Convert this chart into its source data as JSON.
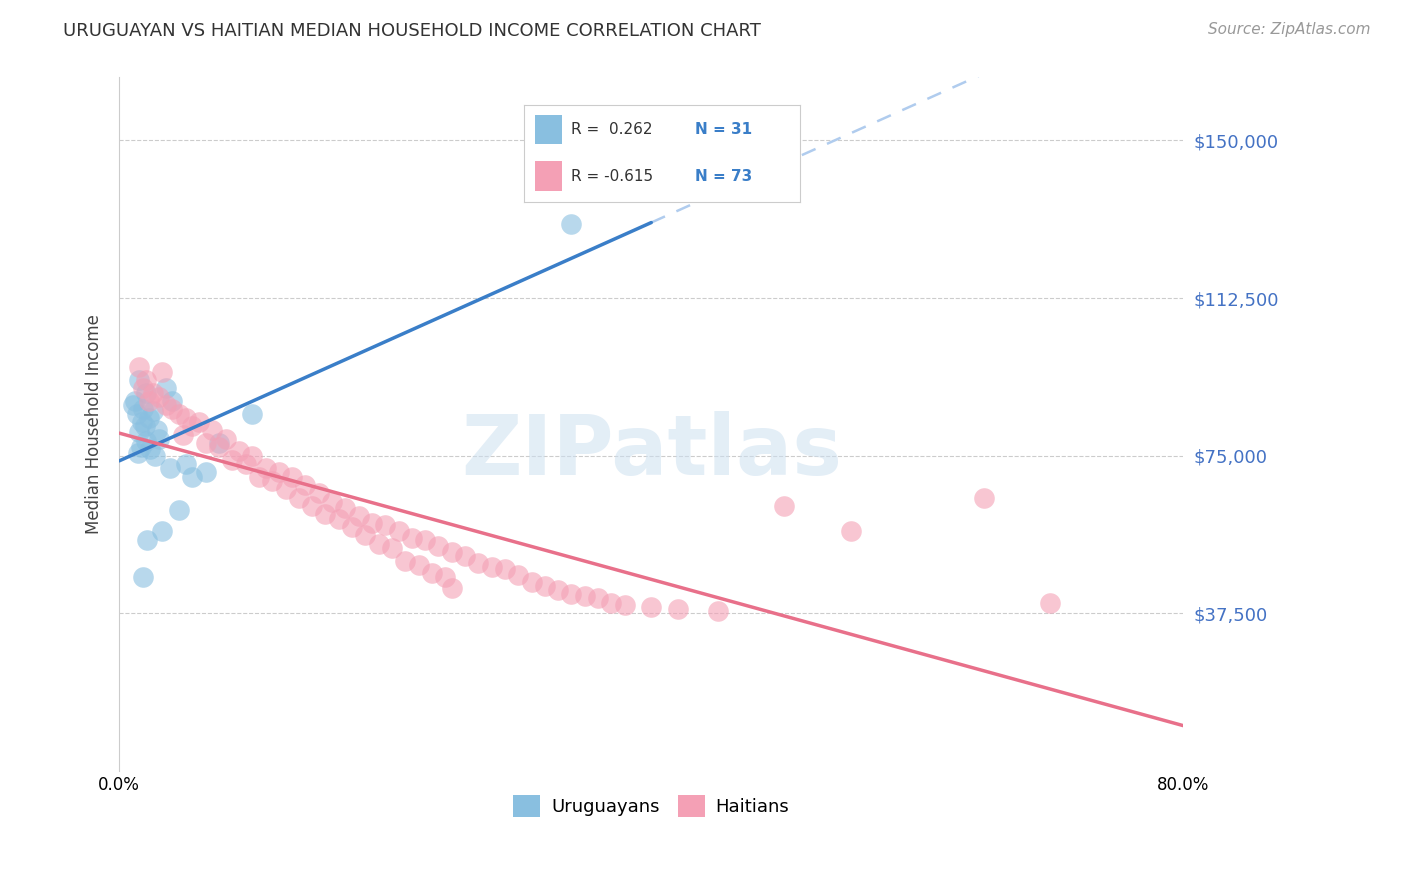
{
  "title": "URUGUAYAN VS HAITIAN MEDIAN HOUSEHOLD INCOME CORRELATION CHART",
  "source": "Source: ZipAtlas.com",
  "ylabel": "Median Household Income",
  "legend_labels": [
    "Uruguayans",
    "Haitians"
  ],
  "yticks": [
    0,
    37500,
    75000,
    112500,
    150000
  ],
  "ytick_labels": [
    "",
    "$37,500",
    "$75,000",
    "$112,500",
    "$150,000"
  ],
  "xlim": [
    0,
    80
  ],
  "ylim": [
    20000,
    165000
  ],
  "blue_color": "#89bfe0",
  "pink_color": "#f4a0b5",
  "blue_line_color": "#3a7ec8",
  "pink_line_color": "#e8708a",
  "dashed_line_color": "#b0ccee",
  "background_color": "#ffffff",
  "uruguayan_x": [
    1.5,
    2.0,
    1.2,
    1.0,
    1.8,
    2.5,
    1.3,
    2.2,
    1.7,
    1.9,
    2.8,
    1.5,
    3.0,
    2.0,
    1.6,
    2.3,
    1.4,
    2.7,
    3.5,
    4.0,
    5.0,
    3.8,
    6.5,
    10.0,
    7.5,
    4.5,
    3.2,
    2.1,
    1.8,
    5.5,
    34.0
  ],
  "uruguayan_y": [
    93000,
    90000,
    88000,
    87000,
    86000,
    85500,
    85000,
    84000,
    83000,
    82000,
    81000,
    80500,
    79000,
    78500,
    77000,
    76500,
    75500,
    75000,
    91000,
    88000,
    73000,
    72000,
    71000,
    85000,
    78000,
    62000,
    57000,
    55000,
    46000,
    70000,
    130000
  ],
  "haitian_x": [
    1.5,
    2.0,
    1.8,
    2.5,
    3.0,
    2.2,
    3.5,
    4.0,
    3.2,
    4.5,
    5.0,
    6.0,
    5.5,
    4.8,
    7.0,
    6.5,
    8.0,
    7.5,
    9.0,
    8.5,
    10.0,
    9.5,
    11.0,
    12.0,
    10.5,
    13.0,
    11.5,
    14.0,
    12.5,
    15.0,
    13.5,
    16.0,
    14.5,
    17.0,
    15.5,
    18.0,
    16.5,
    19.0,
    20.0,
    17.5,
    21.0,
    18.5,
    22.0,
    23.0,
    19.5,
    24.0,
    20.5,
    25.0,
    26.0,
    21.5,
    27.0,
    22.5,
    28.0,
    29.0,
    23.5,
    30.0,
    24.5,
    31.0,
    32.0,
    25.0,
    33.0,
    34.0,
    35.0,
    36.0,
    37.0,
    38.0,
    40.0,
    42.0,
    45.0,
    50.0,
    55.0,
    65.0,
    70.0
  ],
  "haitian_y": [
    96000,
    93000,
    91000,
    90000,
    89000,
    88000,
    87000,
    86000,
    95000,
    85000,
    84000,
    83000,
    82000,
    80000,
    81000,
    78000,
    79000,
    77000,
    76000,
    74000,
    75000,
    73000,
    72000,
    71000,
    70000,
    70000,
    69000,
    68000,
    67000,
    66000,
    65000,
    64000,
    63000,
    62500,
    61000,
    60500,
    60000,
    59000,
    58500,
    58000,
    57000,
    56000,
    55500,
    55000,
    54000,
    53500,
    53000,
    52000,
    51000,
    50000,
    49500,
    49000,
    48500,
    48000,
    47000,
    46500,
    46000,
    45000,
    44000,
    43500,
    43000,
    42000,
    41500,
    41000,
    40000,
    39500,
    39000,
    38500,
    38000,
    63000,
    57000,
    65000,
    40000
  ]
}
